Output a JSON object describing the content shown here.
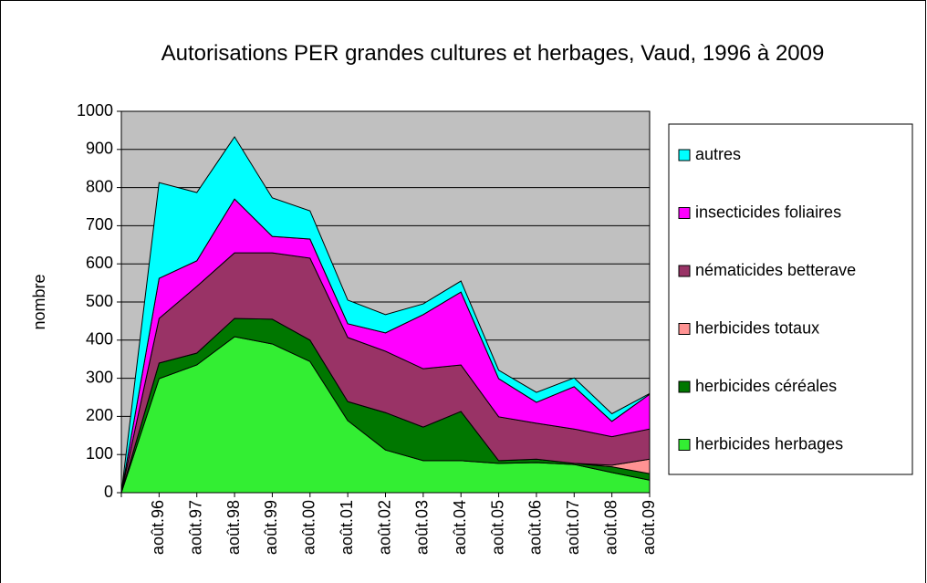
{
  "chart_data": {
    "type": "stacked_area",
    "title": "Autorisations PER grandes cultures et herbages, Vaud, 1996 à 2009",
    "ylabel": "nombre",
    "categories": [
      null,
      "août.96",
      "août.97",
      "août.98",
      "août.99",
      "août.00",
      "août.01",
      "août.02",
      "août.03",
      "août.04",
      "août.05",
      "août.06",
      "août.07",
      "août.08",
      "août.09"
    ],
    "series": [
      {
        "name": "herbicides herbages",
        "color": "#33ee33",
        "values": [
          0,
          299,
          335,
          409,
          390,
          344,
          189,
          112,
          84,
          84,
          77,
          79,
          74,
          53,
          33
        ]
      },
      {
        "name": "herbicides céréales",
        "color": "#007700",
        "values": [
          0,
          41,
          31,
          48,
          65,
          56,
          50,
          98,
          88,
          129,
          7,
          9,
          3,
          15,
          17
        ]
      },
      {
        "name": "herbicides totaux",
        "color": "#ff9393",
        "values": [
          0,
          0,
          0,
          0,
          0,
          0,
          0,
          0,
          0,
          0,
          0,
          0,
          0,
          4,
          38
        ]
      },
      {
        "name": "nématicides betterave",
        "color": "#993366",
        "values": [
          0,
          117,
          175,
          172,
          174,
          215,
          168,
          161,
          153,
          122,
          115,
          94,
          90,
          75,
          79
        ]
      },
      {
        "name": "insecticides foliaires",
        "color": "#ff00ff",
        "values": [
          0,
          105,
          67,
          141,
          43,
          50,
          36,
          48,
          142,
          191,
          100,
          55,
          111,
          40,
          91
        ]
      },
      {
        "name": "autres",
        "color": "#00ffff",
        "values": [
          0,
          251,
          179,
          163,
          101,
          74,
          62,
          48,
          28,
          29,
          22,
          26,
          23,
          20,
          2
        ]
      }
    ],
    "ylim": [
      0,
      1000
    ],
    "yticks": [
      0,
      100,
      200,
      300,
      400,
      500,
      600,
      700,
      800,
      900,
      1000
    ],
    "grid": true,
    "plot_background": "#c0c0c0",
    "legend": "right"
  }
}
